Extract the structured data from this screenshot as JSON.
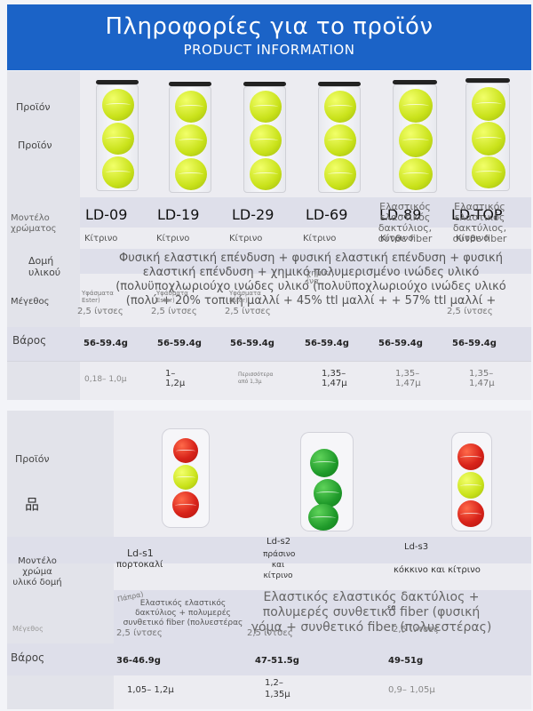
{
  "header": {
    "title_gr": "Πληροφορίες για το προϊόν",
    "title_en": "PRODUCT INFORMATION"
  },
  "top": {
    "labels": {
      "product1": "Προϊόν",
      "product2": "Προϊόν",
      "model_color": "Μοντέλο χρώματος",
      "material": "Δομή υλικού",
      "size": "Μέγεθος",
      "weight": "Βάρος"
    },
    "models": [
      "LD-09",
      "LD-19",
      "LD-29",
      "LD-69",
      "LD-89",
      "LD-TOP"
    ],
    "model_overlay_89": "Ελαστικός ελαστικός δακτύλιος, συνθε fiber",
    "model_overlay_top": "Ελαστικός ελαστικός δακτύλιος, συνθε fiber",
    "colors": [
      "Κίτρινο",
      "Κίτρινο",
      "Κίτρινο",
      "Κίτρινο",
      "Κίτρινο",
      "Κίτρινο"
    ],
    "material_line1": "Φυσική ελαστική επένδυση + φυσική ελαστική επένδυση + φυσική",
    "material_line2": "ελαστική επένδυση + χημικό πολυμερισμένο ινώδες υλικό",
    "material_line3": "(πολυϋποχλωριούχο ινώδες υλικό (πολυϋποχλωριούχο ινώδες υλικό",
    "material_line4": "(πολύ + 20% τοπική μαλλί + 45% ttl μαλλί + + 57% ttl μαλλί +",
    "material_small1": "Υφάσματα Ester)",
    "material_small2": "Υφάσματα Ester)",
    "material_small3": "Υφάσματα Ester)",
    "material_small4": "χημική ίνα",
    "sizes": [
      "2,5 ίντσες",
      "2,5 ίντσες",
      "2,5 ίντσες",
      "",
      "",
      "2,5 ίντσες"
    ],
    "weights": [
      "56-59.4g",
      "56-59.4g",
      "56-59.4g",
      "56-59.4g",
      "56-59.4g",
      "56-59.4g"
    ],
    "extra": [
      "0,18– 1,0μ",
      "1– 1,2μ",
      "Περισσότερα από 1,3μ",
      "1,35– 1,47μ",
      "1,35– 1,47μ",
      "1,35– 1,47μ"
    ]
  },
  "bottom": {
    "labels": {
      "product": "Προϊόν",
      "model": "Μοντέλο χρώμα υλικό δομή",
      "size": "Μέγεθος",
      "weight": "Βάρος"
    },
    "icon_label": "品",
    "models": [
      {
        "name": "Ld-s1",
        "color": "πορτοκαλί"
      },
      {
        "name": "Ld-s2",
        "color": "πράσινο και κίτρινο"
      },
      {
        "name": "Ld-s3",
        "color": "κόκκινο και κίτρινο"
      }
    ],
    "material_small": "Ελαστικός ελαστικός δακτύλιος + πολυμερές συνθετικό fiber (πολυεστέρας",
    "material_tag": "Πάπρα)",
    "material_big": "Ελαστικός ελαστικός δακτύλιος + πολυμερές συνθετικό fiber (φυσική γόμα + συνθετικό fiber (πολυεστέρας)",
    "material_ea": "εα",
    "sizes": [
      "2,5 ίντσες",
      "2,5 ίντσες",
      "2,5 ίντσες"
    ],
    "weights": [
      "36-46.9g",
      "47-51.5g",
      "49-51g"
    ],
    "extra": [
      "1,05– 1,2μ",
      "1,2– 1,35μ",
      "0,9– 1,05μ"
    ]
  }
}
